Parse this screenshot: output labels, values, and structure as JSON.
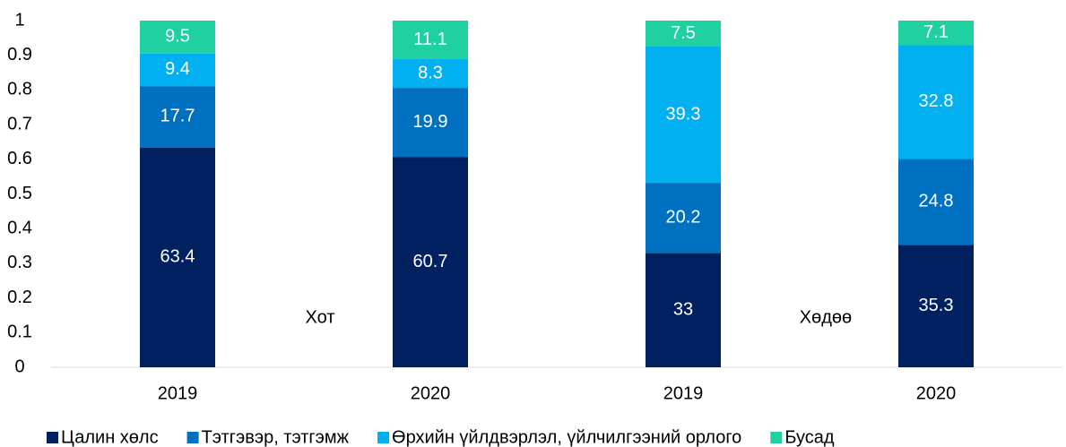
{
  "chart_data": {
    "type": "stacked_bar",
    "categories": [
      "2019",
      "2020",
      "2019",
      "2020"
    ],
    "annotations": [
      "Хот",
      "Хөдөө"
    ],
    "series": [
      {
        "name": "Цалин хөлс",
        "color": "#002060",
        "values": [
          0.634,
          0.607,
          0.33,
          0.353
        ],
        "value_labels": [
          "63.4",
          "60.7",
          "33",
          "35.3"
        ]
      },
      {
        "name": "Тэтгэвэр, тэтгэмж",
        "color": "#0070c0",
        "values": [
          0.177,
          0.199,
          0.202,
          0.248
        ],
        "value_labels": [
          "17.7",
          "19.9",
          "20.2",
          "24.8"
        ]
      },
      {
        "name": "Өрхийн үйлдвэрлэл, үйлчилгээний орлого",
        "color": "#00b0f0",
        "values": [
          0.094,
          0.083,
          0.393,
          0.328
        ],
        "value_labels": [
          "9.4",
          "8.3",
          "39.3",
          "32.8"
        ]
      },
      {
        "name": "Бусад",
        "color": "#1fd1a0",
        "values": [
          0.095,
          0.111,
          0.075,
          0.071
        ],
        "value_labels": [
          "9.5",
          "11.1",
          "7.5",
          "7.1"
        ]
      }
    ],
    "ylim": [
      0,
      1
    ],
    "yticks": [
      0,
      0.1,
      0.2,
      0.3,
      0.4,
      0.5,
      0.6,
      0.7,
      0.8,
      0.9,
      1
    ],
    "grid": false,
    "legend": "bottom"
  }
}
